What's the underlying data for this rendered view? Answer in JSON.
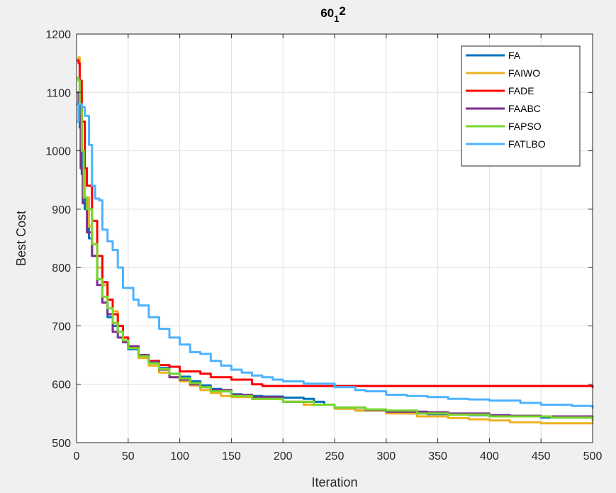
{
  "chart_data": {
    "type": "line",
    "title": "60",
    "title_subscript": "1",
    "title_superscript": "2",
    "xlabel": "Iteration",
    "ylabel": "Best Cost",
    "xlim": [
      0,
      500
    ],
    "ylim": [
      500,
      1200
    ],
    "xticks": [
      0,
      50,
      100,
      150,
      200,
      250,
      300,
      350,
      400,
      450,
      500
    ],
    "yticks": [
      500,
      600,
      700,
      800,
      900,
      1000,
      1100,
      1200
    ],
    "xtick_labels": [
      "0",
      "50",
      "100",
      "150",
      "200",
      "250",
      "300",
      "350",
      "400",
      "450",
      "500"
    ],
    "ytick_labels": [
      "500",
      "600",
      "700",
      "800",
      "900",
      "1000",
      "1100",
      "1200"
    ],
    "grid": true,
    "legend_position": "top-right",
    "series": [
      {
        "name": "FA",
        "color": "#0072bd",
        "points": [
          [
            1,
            1080
          ],
          [
            3,
            1040
          ],
          [
            5,
            960
          ],
          [
            8,
            900
          ],
          [
            12,
            850
          ],
          [
            15,
            820
          ],
          [
            20,
            780
          ],
          [
            25,
            740
          ],
          [
            30,
            715
          ],
          [
            35,
            700
          ],
          [
            40,
            690
          ],
          [
            45,
            672
          ],
          [
            50,
            660
          ],
          [
            60,
            648
          ],
          [
            70,
            637
          ],
          [
            80,
            628
          ],
          [
            90,
            618
          ],
          [
            100,
            613
          ],
          [
            110,
            605
          ],
          [
            120,
            598
          ],
          [
            130,
            592
          ],
          [
            140,
            588
          ],
          [
            150,
            583
          ],
          [
            160,
            581
          ],
          [
            170,
            580
          ],
          [
            180,
            579
          ],
          [
            200,
            577
          ],
          [
            220,
            575
          ],
          [
            230,
            570
          ],
          [
            240,
            565
          ],
          [
            250,
            560
          ],
          [
            270,
            555
          ],
          [
            300,
            552
          ],
          [
            320,
            550
          ],
          [
            340,
            549
          ],
          [
            360,
            548
          ],
          [
            380,
            547
          ],
          [
            400,
            545
          ],
          [
            420,
            545
          ],
          [
            450,
            543
          ],
          [
            500,
            540
          ]
        ]
      },
      {
        "name": "FAIWO",
        "color": "#edb120",
        "points": [
          [
            1,
            1155
          ],
          [
            2,
            1160
          ],
          [
            3,
            1100
          ],
          [
            5,
            1000
          ],
          [
            8,
            920
          ],
          [
            12,
            870
          ],
          [
            15,
            840
          ],
          [
            20,
            800
          ],
          [
            25,
            770
          ],
          [
            30,
            745
          ],
          [
            35,
            725
          ],
          [
            40,
            700
          ],
          [
            45,
            680
          ],
          [
            50,
            665
          ],
          [
            60,
            645
          ],
          [
            70,
            632
          ],
          [
            80,
            620
          ],
          [
            90,
            612
          ],
          [
            100,
            605
          ],
          [
            110,
            598
          ],
          [
            120,
            590
          ],
          [
            130,
            585
          ],
          [
            140,
            580
          ],
          [
            150,
            578
          ],
          [
            170,
            575
          ],
          [
            200,
            570
          ],
          [
            220,
            565
          ],
          [
            250,
            558
          ],
          [
            270,
            555
          ],
          [
            300,
            550
          ],
          [
            330,
            545
          ],
          [
            360,
            542
          ],
          [
            380,
            540
          ],
          [
            400,
            538
          ],
          [
            420,
            535
          ],
          [
            450,
            533
          ],
          [
            500,
            533
          ]
        ]
      },
      {
        "name": "FADE",
        "color": "#ff0000",
        "points": [
          [
            1,
            1155
          ],
          [
            2,
            1150
          ],
          [
            3,
            1120
          ],
          [
            5,
            1050
          ],
          [
            8,
            970
          ],
          [
            10,
            940
          ],
          [
            15,
            880
          ],
          [
            20,
            820
          ],
          [
            25,
            775
          ],
          [
            30,
            745
          ],
          [
            35,
            720
          ],
          [
            40,
            700
          ],
          [
            45,
            680
          ],
          [
            50,
            665
          ],
          [
            60,
            650
          ],
          [
            70,
            640
          ],
          [
            80,
            633
          ],
          [
            90,
            630
          ],
          [
            100,
            622
          ],
          [
            120,
            618
          ],
          [
            130,
            612
          ],
          [
            150,
            608
          ],
          [
            170,
            600
          ],
          [
            180,
            597
          ],
          [
            200,
            597
          ],
          [
            250,
            597
          ],
          [
            300,
            597
          ],
          [
            350,
            597
          ],
          [
            400,
            597
          ],
          [
            450,
            597
          ],
          [
            500,
            595
          ]
        ]
      },
      {
        "name": "FAABC",
        "color": "#7e2f8e",
        "points": [
          [
            1,
            1100
          ],
          [
            2,
            1060
          ],
          [
            4,
            970
          ],
          [
            6,
            910
          ],
          [
            10,
            860
          ],
          [
            15,
            820
          ],
          [
            20,
            770
          ],
          [
            25,
            740
          ],
          [
            30,
            720
          ],
          [
            35,
            690
          ],
          [
            40,
            680
          ],
          [
            45,
            672
          ],
          [
            50,
            665
          ],
          [
            60,
            650
          ],
          [
            70,
            638
          ],
          [
            80,
            625
          ],
          [
            90,
            612
          ],
          [
            100,
            608
          ],
          [
            110,
            600
          ],
          [
            120,
            595
          ],
          [
            130,
            590
          ],
          [
            150,
            582
          ],
          [
            170,
            578
          ],
          [
            200,
            570
          ],
          [
            230,
            565
          ],
          [
            250,
            560
          ],
          [
            280,
            556
          ],
          [
            300,
            553
          ],
          [
            340,
            552
          ],
          [
            360,
            550
          ],
          [
            400,
            547
          ],
          [
            420,
            546
          ],
          [
            450,
            545
          ],
          [
            500,
            542
          ]
        ]
      },
      {
        "name": "FAPSO",
        "color": "#77d62a",
        "points": [
          [
            1,
            1125
          ],
          [
            2,
            1120
          ],
          [
            3,
            1080
          ],
          [
            5,
            1000
          ],
          [
            7,
            920
          ],
          [
            10,
            900
          ],
          [
            15,
            840
          ],
          [
            20,
            780
          ],
          [
            25,
            750
          ],
          [
            30,
            730
          ],
          [
            35,
            705
          ],
          [
            40,
            690
          ],
          [
            45,
            675
          ],
          [
            50,
            662
          ],
          [
            60,
            648
          ],
          [
            70,
            636
          ],
          [
            80,
            626
          ],
          [
            90,
            618
          ],
          [
            100,
            610
          ],
          [
            110,
            602
          ],
          [
            120,
            595
          ],
          [
            130,
            588
          ],
          [
            150,
            580
          ],
          [
            170,
            575
          ],
          [
            200,
            570
          ],
          [
            230,
            565
          ],
          [
            250,
            560
          ],
          [
            280,
            557
          ],
          [
            300,
            555
          ],
          [
            330,
            550
          ],
          [
            360,
            548
          ],
          [
            400,
            545
          ],
          [
            430,
            545
          ],
          [
            460,
            543
          ],
          [
            500,
            538
          ]
        ]
      },
      {
        "name": "FATLBO",
        "color": "#4db3ff",
        "points": [
          [
            1,
            1050
          ],
          [
            2,
            1080
          ],
          [
            5,
            1075
          ],
          [
            8,
            1060
          ],
          [
            12,
            1010
          ],
          [
            15,
            940
          ],
          [
            18,
            918
          ],
          [
            22,
            915
          ],
          [
            25,
            865
          ],
          [
            30,
            845
          ],
          [
            35,
            830
          ],
          [
            40,
            800
          ],
          [
            45,
            765
          ],
          [
            50,
            765
          ],
          [
            55,
            745
          ],
          [
            60,
            735
          ],
          [
            70,
            715
          ],
          [
            80,
            695
          ],
          [
            90,
            680
          ],
          [
            100,
            668
          ],
          [
            110,
            655
          ],
          [
            120,
            652
          ],
          [
            130,
            640
          ],
          [
            140,
            632
          ],
          [
            150,
            625
          ],
          [
            160,
            620
          ],
          [
            170,
            615
          ],
          [
            180,
            612
          ],
          [
            190,
            608
          ],
          [
            200,
            605
          ],
          [
            220,
            601
          ],
          [
            250,
            595
          ],
          [
            270,
            590
          ],
          [
            280,
            588
          ],
          [
            300,
            582
          ],
          [
            320,
            580
          ],
          [
            340,
            578
          ],
          [
            360,
            575
          ],
          [
            380,
            574
          ],
          [
            400,
            572
          ],
          [
            430,
            568
          ],
          [
            450,
            565
          ],
          [
            480,
            563
          ],
          [
            500,
            560
          ]
        ]
      }
    ]
  }
}
